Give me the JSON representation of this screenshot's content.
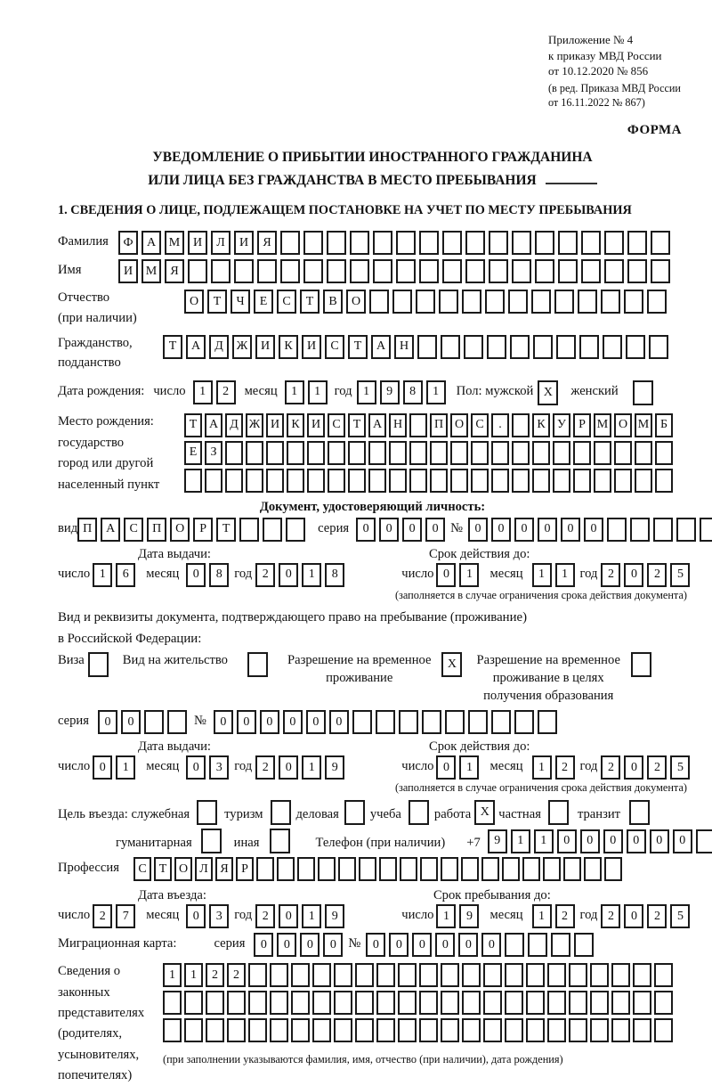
{
  "header": {
    "appendix": [
      "Приложение № 4",
      "к приказу МВД России",
      "от 10.12.2020 № 856"
    ],
    "edition": [
      "(в ред. Приказа МВД России",
      "от 16.11.2022 № 867)"
    ],
    "forma": "ФОРМА",
    "title1": "УВЕДОМЛЕНИЕ О ПРИБЫТИИ ИНОСТРАННОГО ГРАЖДАНИНА",
    "title2": "ИЛИ ЛИЦА БЕЗ ГРАЖДАНСТВА В МЕСТО ПРЕБЫВАНИЯ",
    "section1": "1. СВЕДЕНИЯ О ЛИЦЕ, ПОДЛЕЖАЩЕМ ПОСТАНОВКЕ НА УЧЕТ ПО МЕСТУ ПРЕБЫВАНИЯ"
  },
  "labels": {
    "surname": "Фамилия",
    "firstname": "Имя",
    "patr1": "Отчество",
    "patr2": "(при наличии)",
    "cit1": "Гражданство,",
    "cit2": "подданство",
    "birth": "Дата рождения:",
    "day": "число",
    "month": "месяц",
    "year": "год",
    "sex_male": "Пол: мужской",
    "sex_female": "женский",
    "place1": "Место рождения:",
    "place2": "государство",
    "place3": "город или другой",
    "place4": "населенный пункт",
    "doc_header": "Документ, удостоверяющий личность:",
    "kind": "вид",
    "series": "серия",
    "number_sign": "№",
    "issue": "Дата выдачи:",
    "valid_to": "Срок действия до:",
    "valid_note": "(заполняется в случае ограничения срока действия документа)",
    "right_intro1": "Вид и реквизиты документа, подтверждающего право на пребывание (проживание)",
    "right_intro2": "в Российской Федерации:",
    "visa": "Виза",
    "residence": "Вид на жительство",
    "temp1": "Разрешение на временное",
    "temp2": "проживание",
    "tempedu1": "Разрешение на временное",
    "tempedu2": "проживание в целях",
    "tempedu3": "получения образования",
    "purpose": "Цель въезда: служебная",
    "tourism": "туризм",
    "business": "деловая",
    "study": "учеба",
    "work": "работа",
    "private": "частная",
    "transit": "транзит",
    "humanitarian": "гуманитарная",
    "other": "иная",
    "phone": "Телефон (при наличии)",
    "plus7": "+7",
    "profession": "Профессия",
    "entry_date": "Дата въезда:",
    "stay_until": "Срок пребывания до:",
    "migcard": "Миграционная карта:",
    "rep1": "Сведения о",
    "rep2": "законных",
    "rep3": "представителях",
    "rep4": "(родителях,",
    "rep5": "усыновителях,",
    "rep6": "попечителях)",
    "rep_note": "(при заполнении указываются фамилия, имя, отчество (при наличии), дата рождения)"
  },
  "grids": {
    "surname": {
      "value": "ФАМИЛИЯ",
      "cells": 24
    },
    "firstname": {
      "value": "ИМЯ",
      "cells": 24
    },
    "patronymic": {
      "value": "ОТЧЕСТВО",
      "cells": 21
    },
    "citizenship": {
      "value": "ТАДЖИКИСТАН",
      "cells": 22
    },
    "birth_day": {
      "value": "12",
      "cells": 2
    },
    "birth_month": {
      "value": "11",
      "cells": 2
    },
    "birth_year": {
      "value": "1981",
      "cells": 4
    },
    "birthplace1": {
      "value": "ТАДЖИКИСТАН ПОС. КУРМОМБ",
      "cells": 24
    },
    "birthplace2": {
      "value": "ЕЗ",
      "cells": 24
    },
    "birthplace3": {
      "value": "",
      "cells": 24
    },
    "doc_kind": {
      "value": "ПАСПОРТ",
      "cells": 10
    },
    "doc_series": {
      "value": "0000",
      "cells": 4
    },
    "doc_number": {
      "value": "000000",
      "cells": 12
    },
    "doc_issue_day": {
      "value": "16",
      "cells": 2
    },
    "doc_issue_month": {
      "value": "08",
      "cells": 2
    },
    "doc_issue_year": {
      "value": "2018",
      "cells": 4
    },
    "doc_valid_day": {
      "value": "01",
      "cells": 2
    },
    "doc_valid_month": {
      "value": "11",
      "cells": 2
    },
    "doc_valid_year": {
      "value": "2025",
      "cells": 4
    },
    "permit_series": {
      "value": "00",
      "cells": 4
    },
    "permit_number": {
      "value": "000000",
      "cells": 15
    },
    "permit_issue_day": {
      "value": "01",
      "cells": 2
    },
    "permit_issue_month": {
      "value": "03",
      "cells": 2
    },
    "permit_issue_year": {
      "value": "2019",
      "cells": 4
    },
    "permit_valid_day": {
      "value": "01",
      "cells": 2
    },
    "permit_valid_month": {
      "value": "12",
      "cells": 2
    },
    "permit_valid_year": {
      "value": "2025",
      "cells": 4
    },
    "phone": {
      "value": "911000000",
      "cells": 10
    },
    "profession": {
      "value": "СТОЛЯР",
      "cells": 24
    },
    "entry_day": {
      "value": "27",
      "cells": 2
    },
    "entry_month": {
      "value": "03",
      "cells": 2
    },
    "entry_year": {
      "value": "2019",
      "cells": 4
    },
    "stay_day": {
      "value": "19",
      "cells": 2
    },
    "stay_month": {
      "value": "12",
      "cells": 2
    },
    "stay_year": {
      "value": "2025",
      "cells": 4
    },
    "mig_series": {
      "value": "0000",
      "cells": 4
    },
    "mig_number": {
      "value": "000000",
      "cells": 10
    },
    "rep_row1": {
      "value": "1122",
      "cells": 24
    },
    "rep_row2": {
      "value": "",
      "cells": 24
    },
    "rep_row3": {
      "value": "",
      "cells": 24
    }
  },
  "checks": {
    "male": "X",
    "female": "",
    "visa": "",
    "residence": "",
    "temp_permit": "X",
    "temp_permit_edu": "",
    "official": "",
    "tourism": "",
    "business": "",
    "study": "",
    "work": "X",
    "private": "",
    "transit": "",
    "humanitarian": "",
    "other": ""
  }
}
